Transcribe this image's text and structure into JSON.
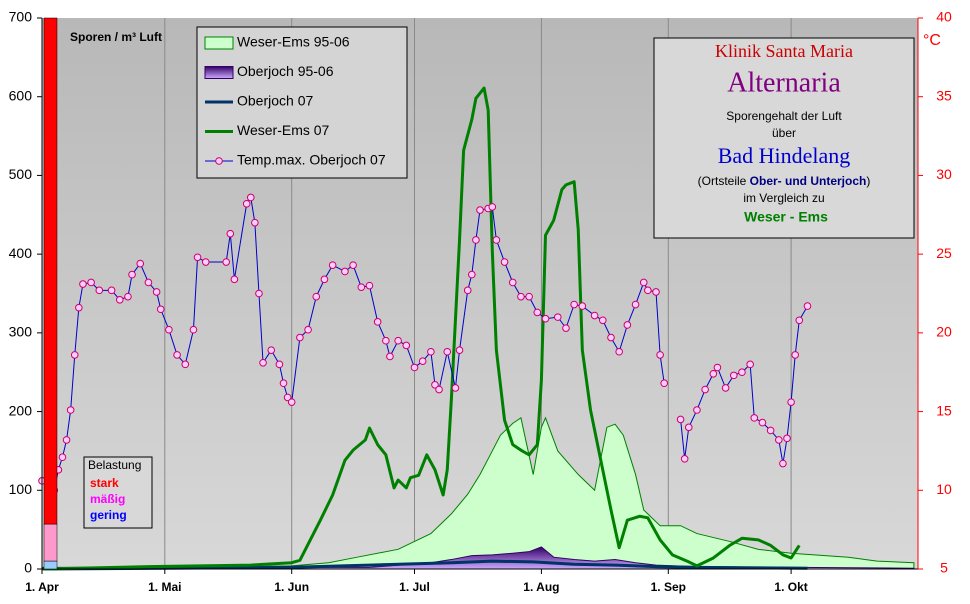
{
  "chart_data": {
    "type": "line",
    "y_label": "Sporen / m³ Luft",
    "y2_label": "°C",
    "xlim": [
      0,
      214
    ],
    "xticks": [
      {
        "value": 0,
        "label": "1. Apr"
      },
      {
        "value": 30,
        "label": "1. Mai"
      },
      {
        "value": 61,
        "label": "1. Jun"
      },
      {
        "value": 91,
        "label": "1. Jul"
      },
      {
        "value": 122,
        "label": "1. Aug"
      },
      {
        "value": 153,
        "label": "1. Sep"
      },
      {
        "value": 183,
        "label": "1. Okt"
      }
    ],
    "ylim": [
      0,
      700
    ],
    "yticks": [
      0,
      100,
      200,
      300,
      400,
      500,
      600,
      700
    ],
    "y2lim": [
      5,
      40
    ],
    "y2ticks": [
      5,
      10,
      15,
      20,
      25,
      30,
      35,
      40
    ],
    "grid": "x",
    "legend": "top-left",
    "series": [
      {
        "name": "Weser-Ems 95-06",
        "style": "area",
        "color": "#ccffcc",
        "edge": "#008000",
        "x": [
          0,
          61,
          70,
          77,
          87,
          95,
          100,
          104,
          107,
          110,
          112,
          115,
          117,
          120,
          122,
          123,
          126,
          131,
          135,
          138,
          140,
          142,
          145,
          147,
          151,
          156,
          160,
          168,
          175,
          183,
          197,
          204,
          213
        ],
        "values": [
          0,
          4,
          8,
          15,
          25,
          45,
          70,
          95,
          120,
          150,
          170,
          185,
          192,
          120,
          180,
          192,
          150,
          120,
          100,
          180,
          184,
          170,
          120,
          75,
          55,
          55,
          45,
          35,
          25,
          20,
          15,
          10,
          8
        ]
      },
      {
        "name": "Oberjoch 95-06",
        "style": "area",
        "color": "#9966cc",
        "edge": "#330066",
        "x": [
          0,
          80,
          95,
          100,
          105,
          110,
          115,
          119,
          122,
          125,
          130,
          135,
          140,
          145,
          150,
          160,
          213
        ],
        "values": [
          2,
          2,
          8,
          12,
          17,
          18,
          20,
          22,
          28,
          15,
          12,
          10,
          12,
          8,
          5,
          3,
          1
        ]
      },
      {
        "name": "Oberjoch 07",
        "style": "line",
        "color": "#003366",
        "x": [
          0,
          60,
          80,
          100,
          110,
          120,
          130,
          140,
          150,
          160,
          187
        ],
        "values": [
          0,
          2,
          5,
          8,
          10,
          9,
          6,
          5,
          3,
          2,
          1
        ]
      },
      {
        "name": "Weser-Ems 07",
        "style": "line",
        "color": "#008000",
        "x": [
          0,
          26,
          51,
          61,
          63,
          68,
          71,
          74,
          76,
          79,
          80,
          82,
          84,
          86,
          87,
          89,
          90,
          92,
          94,
          96,
          98,
          99,
          100,
          102,
          103,
          105,
          106,
          108,
          109,
          110,
          111,
          113,
          115,
          117,
          119,
          121,
          122,
          123,
          125,
          127,
          128,
          130,
          131,
          132,
          134,
          136,
          139,
          141,
          143,
          146,
          148,
          151,
          154,
          158,
          160,
          164,
          168,
          171,
          175,
          178,
          181,
          183,
          185
        ],
        "values": [
          0,
          3,
          5,
          8,
          11,
          62,
          94,
          138,
          151,
          164,
          179,
          158,
          145,
          103,
          113,
          103,
          116,
          119,
          145,
          126,
          94,
          126,
          215,
          418,
          532,
          571,
          598,
          611,
          583,
          405,
          278,
          189,
          158,
          151,
          145,
          158,
          240,
          424,
          443,
          482,
          488,
          492,
          431,
          278,
          202,
          151,
          75,
          27,
          62,
          67,
          65,
          37,
          18,
          9,
          4,
          14,
          30,
          39,
          37,
          30,
          18,
          14,
          30
        ]
      },
      {
        "name": "Temp.max. Oberjoch 07",
        "style": "marker-line",
        "axis": "y2",
        "color": "#0000cc",
        "marker_color": "#cc0066",
        "x": [
          0,
          3,
          4,
          5,
          6,
          7,
          8,
          9,
          10,
          12,
          14,
          17,
          19,
          21,
          22,
          24,
          26,
          28,
          29,
          31,
          33,
          35,
          37,
          38,
          40,
          45,
          46,
          47,
          50,
          51,
          52,
          53,
          54,
          56,
          58,
          59,
          60,
          61,
          63,
          65,
          67,
          69,
          71,
          74,
          76,
          78,
          80,
          82,
          84,
          85,
          87,
          89,
          91,
          93,
          95,
          96,
          97,
          99,
          101,
          102,
          104,
          105,
          106,
          107,
          109,
          110,
          111,
          113,
          115,
          117,
          119,
          121,
          123,
          126,
          128,
          130,
          132,
          135,
          137,
          139,
          141,
          143,
          145,
          147,
          148,
          150,
          151,
          152,
          154,
          156,
          157,
          158,
          160,
          162,
          164,
          165,
          167,
          169,
          171,
          173,
          174,
          176,
          178,
          180,
          181,
          182,
          183,
          184,
          185,
          187
        ],
        "values": [
          10.6,
          10.0,
          11.3,
          12.1,
          13.2,
          15.1,
          18.6,
          21.6,
          23.1,
          23.2,
          22.7,
          22.7,
          22.1,
          22.3,
          23.7,
          24.4,
          23.2,
          22.6,
          21.5,
          20.2,
          18.6,
          18.0,
          20.2,
          24.8,
          24.5,
          24.5,
          26.3,
          23.4,
          28.2,
          28.6,
          27.0,
          22.5,
          18.1,
          18.9,
          18.0,
          16.8,
          15.9,
          15.6,
          19.7,
          20.2,
          22.3,
          23.4,
          24.3,
          23.9,
          24.3,
          22.9,
          23.0,
          20.7,
          19.5,
          18.5,
          19.5,
          19.2,
          17.8,
          18.2,
          18.8,
          16.7,
          16.4,
          18.8,
          16.5,
          18.9,
          22.7,
          23.7,
          25.9,
          27.8,
          27.9,
          28.0,
          25.9,
          24.5,
          23.2,
          22.3,
          22.3,
          21.3,
          20.9,
          21.0,
          20.3,
          21.8,
          21.7,
          21.1,
          20.8,
          19.7,
          18.8,
          20.5,
          21.8,
          23.2,
          22.7,
          22.6,
          18.6,
          16.8,
          null,
          14.5,
          12.0,
          14.0,
          15.1,
          16.4,
          17.4,
          17.8,
          16.5,
          17.3,
          17.5,
          18.0,
          14.6,
          14.3,
          13.8,
          13.2,
          11.7,
          13.3,
          15.6,
          18.6,
          20.8,
          21.7
        ]
      }
    ],
    "belastung": {
      "title": "Belastung",
      "levels": [
        {
          "label": "stark",
          "color": "#ff0000",
          "text_color": "#ff0000",
          "from": 57,
          "to": 700
        },
        {
          "label": "mäßig",
          "color": "#ff99cc",
          "text_color": "#ff00ff",
          "from": 10,
          "to": 57
        },
        {
          "label": "gering",
          "color": "#99ccff",
          "text_color": "#0000ff",
          "from": 0,
          "to": 10
        }
      ]
    },
    "info": {
      "clinic": "Klinik Santa Maria",
      "title": "Alternaria",
      "line1": "Sporengehalt der Luft",
      "line2": "über",
      "place": "Bad Hindelang",
      "parts": [
        "(Ortsteile ",
        "Ober- und Unterjoch",
        ")"
      ],
      "line3": "im Vergleich zu",
      "compare": "Weser - Ems"
    }
  }
}
